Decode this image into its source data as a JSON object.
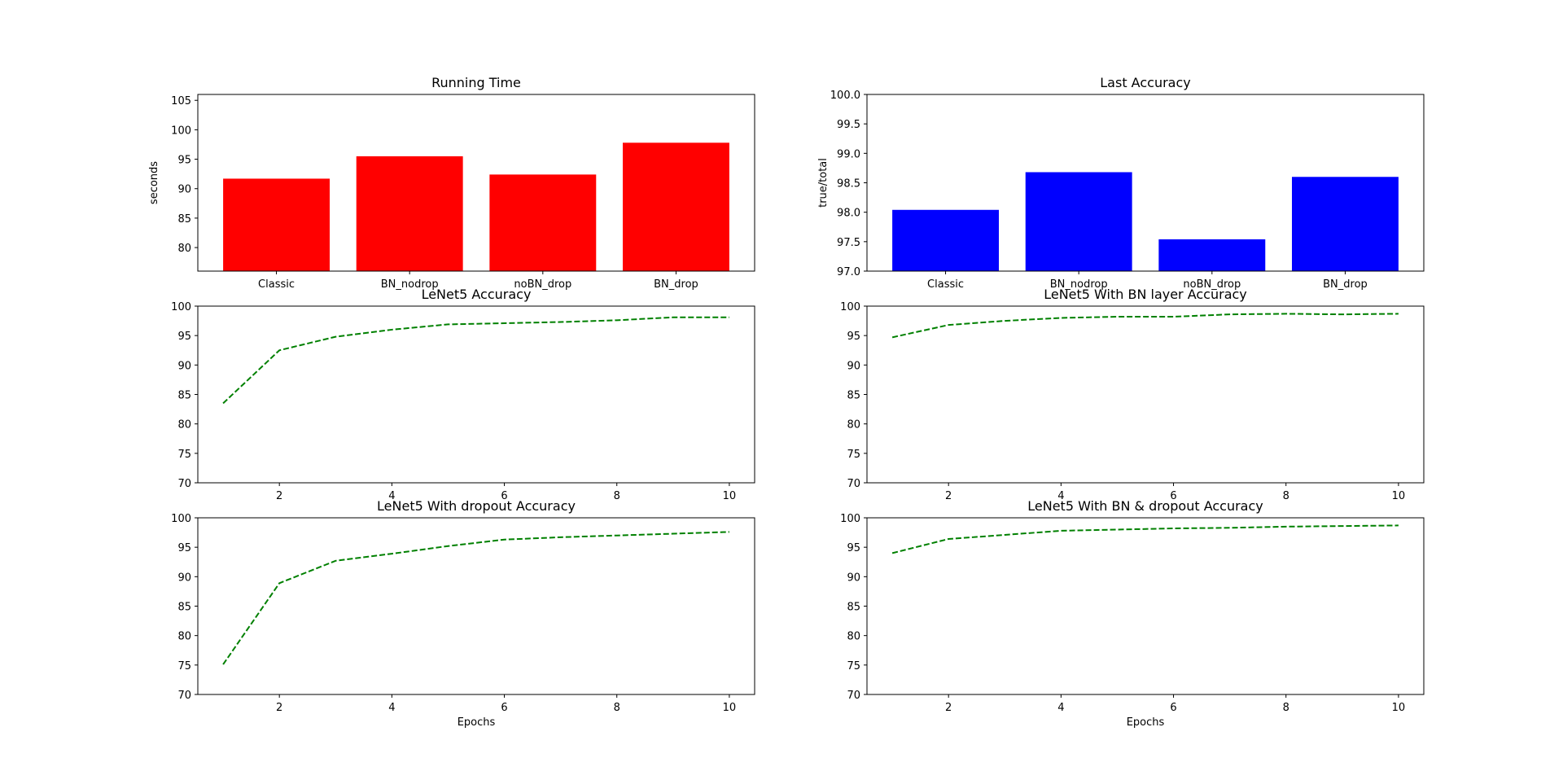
{
  "chart_data": [
    {
      "type": "bar",
      "title": "Running Time",
      "xlabel": "",
      "ylabel": "seconds",
      "categories": [
        "Classic",
        "BN_nodrop",
        "noBN_drop",
        "BN_drop"
      ],
      "values": [
        91.7,
        95.5,
        92.4,
        97.8
      ],
      "ylim": [
        76,
        106
      ],
      "yticks": [
        80,
        85,
        90,
        95,
        100,
        105
      ],
      "color": "#ff0000"
    },
    {
      "type": "bar",
      "title": "Last Accuracy",
      "xlabel": "",
      "ylabel": "true/total",
      "categories": [
        "Classic",
        "BN_nodrop",
        "noBN_drop",
        "BN_drop"
      ],
      "values": [
        98.04,
        98.68,
        97.54,
        98.6
      ],
      "ylim": [
        97.0,
        100.0
      ],
      "yticks": [
        "97.0",
        "97.5",
        "98.0",
        "98.5",
        "99.0",
        "99.5",
        "100.0"
      ],
      "color": "#0000ff"
    },
    {
      "type": "line",
      "title": "LeNet5 Accuracy",
      "xlabel": "",
      "ylabel": "",
      "x": [
        1,
        2,
        3,
        4,
        5,
        6,
        7,
        8,
        9,
        10
      ],
      "y": [
        83.5,
        92.5,
        94.8,
        96.0,
        96.9,
        97.1,
        97.3,
        97.6,
        98.1,
        98.1
      ],
      "xlim": [
        0.55,
        10.45
      ],
      "ylim": [
        70,
        100
      ],
      "xticks": [
        2,
        4,
        6,
        8,
        10
      ],
      "yticks": [
        70,
        75,
        80,
        85,
        90,
        95,
        100
      ],
      "color": "#008000",
      "linestyle": "dashed"
    },
    {
      "type": "line",
      "title": "LeNet5 With BN layer Accuracy",
      "xlabel": "",
      "ylabel": "",
      "x": [
        1,
        2,
        3,
        4,
        5,
        6,
        7,
        8,
        9,
        10
      ],
      "y": [
        94.7,
        96.8,
        97.5,
        98.0,
        98.2,
        98.2,
        98.6,
        98.7,
        98.6,
        98.7
      ],
      "xlim": [
        0.55,
        10.45
      ],
      "ylim": [
        70,
        100
      ],
      "xticks": [
        2,
        4,
        6,
        8,
        10
      ],
      "yticks": [
        70,
        75,
        80,
        85,
        90,
        95,
        100
      ],
      "color": "#008000",
      "linestyle": "dashed"
    },
    {
      "type": "line",
      "title": "LeNet5 With dropout Accuracy",
      "xlabel": "Epochs",
      "ylabel": "",
      "x": [
        1,
        2,
        3,
        4,
        5,
        6,
        7,
        8,
        9,
        10
      ],
      "y": [
        75.1,
        88.9,
        92.7,
        93.9,
        95.2,
        96.3,
        96.7,
        97.0,
        97.3,
        97.6
      ],
      "xlim": [
        0.55,
        10.45
      ],
      "ylim": [
        70,
        100
      ],
      "xticks": [
        2,
        4,
        6,
        8,
        10
      ],
      "yticks": [
        70,
        75,
        80,
        85,
        90,
        95,
        100
      ],
      "color": "#008000",
      "linestyle": "dashed"
    },
    {
      "type": "line",
      "title": "LeNet5 With BN & dropout Accuracy",
      "xlabel": "Epochs",
      "ylabel": "",
      "x": [
        1,
        2,
        3,
        4,
        5,
        6,
        7,
        8,
        9,
        10
      ],
      "y": [
        94.0,
        96.4,
        97.1,
        97.8,
        98.0,
        98.2,
        98.3,
        98.5,
        98.6,
        98.7
      ],
      "xlim": [
        0.55,
        10.45
      ],
      "ylim": [
        70,
        100
      ],
      "xticks": [
        2,
        4,
        6,
        8,
        10
      ],
      "yticks": [
        70,
        75,
        80,
        85,
        90,
        95,
        100
      ],
      "color": "#008000",
      "linestyle": "dashed"
    }
  ]
}
